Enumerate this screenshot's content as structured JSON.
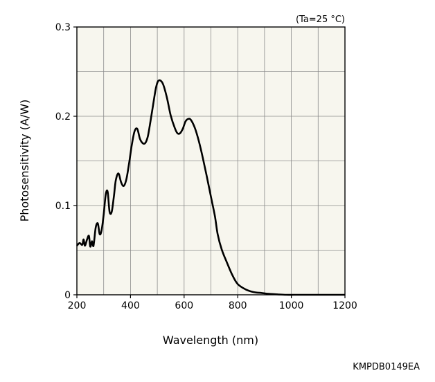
{
  "chart_data": {
    "type": "line",
    "annotation": "(Ta=25 °C)",
    "xlabel": "Wavelength (nm)",
    "ylabel": "Photosensitivity (A/W)",
    "xlim": [
      200,
      1200
    ],
    "ylim": [
      0,
      0.3
    ],
    "x_ticks": [
      200,
      400,
      600,
      800,
      1000,
      1200
    ],
    "x_tick_labels": [
      "200",
      "400",
      "600",
      "800",
      "1000",
      "1200"
    ],
    "y_ticks": [
      0,
      0.1,
      0.2,
      0.3
    ],
    "y_tick_labels": [
      "0",
      "0.1",
      "0.2",
      "0.3"
    ],
    "grid": true,
    "series": [
      {
        "color": "#000000",
        "x": [
          200,
          210,
          220,
          225,
          230,
          238,
          245,
          250,
          256,
          262,
          270,
          278,
          285,
          292,
          300,
          308,
          315,
          322,
          330,
          338,
          345,
          355,
          365,
          375,
          385,
          395,
          405,
          415,
          425,
          435,
          445,
          455,
          465,
          475,
          485,
          495,
          505,
          520,
          535,
          550,
          565,
          575,
          585,
          595,
          605,
          615,
          625,
          640,
          655,
          670,
          685,
          700,
          715,
          725,
          740,
          760,
          780,
          800,
          830,
          860,
          890,
          920,
          950,
          980,
          1010,
          1040,
          1070,
          1100,
          1130,
          1160,
          1200
        ],
        "y": [
          0.055,
          0.058,
          0.056,
          0.062,
          0.055,
          0.062,
          0.066,
          0.054,
          0.06,
          0.055,
          0.075,
          0.08,
          0.068,
          0.072,
          0.09,
          0.113,
          0.115,
          0.093,
          0.093,
          0.11,
          0.128,
          0.136,
          0.126,
          0.122,
          0.13,
          0.148,
          0.168,
          0.183,
          0.186,
          0.175,
          0.17,
          0.17,
          0.178,
          0.195,
          0.214,
          0.232,
          0.24,
          0.237,
          0.222,
          0.201,
          0.187,
          0.181,
          0.181,
          0.186,
          0.194,
          0.197,
          0.196,
          0.187,
          0.172,
          0.153,
          0.132,
          0.11,
          0.088,
          0.068,
          0.051,
          0.036,
          0.022,
          0.012,
          0.006,
          0.003,
          0.002,
          0.001,
          0.0005,
          0.0,
          0.0,
          0.0,
          0.0,
          0.0,
          0.0,
          0.0,
          0.0
        ]
      }
    ]
  },
  "footer_code": "KMPDB0149EA"
}
